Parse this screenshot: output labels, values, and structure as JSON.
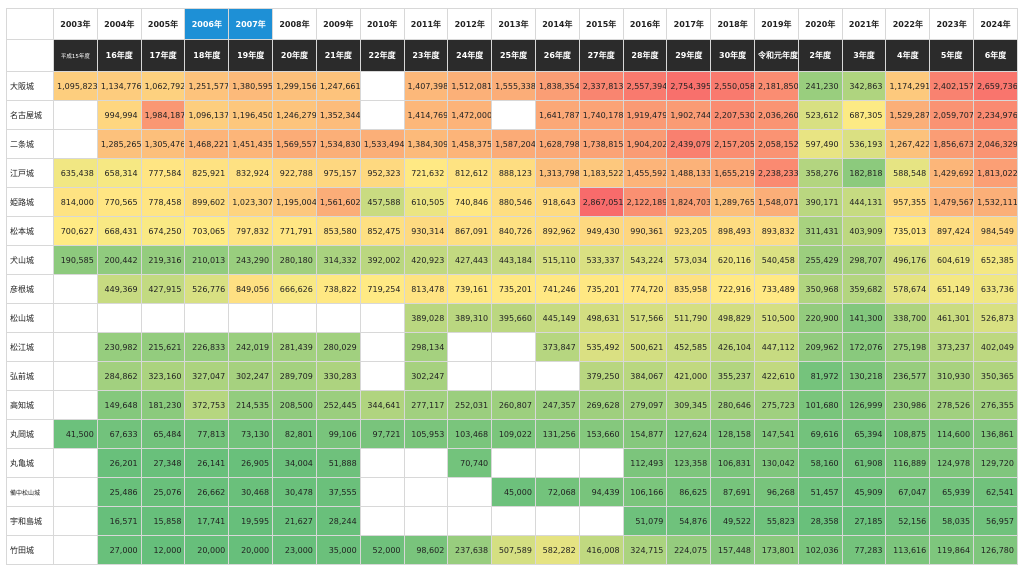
{
  "chart_data": {
    "type": "table",
    "years": [
      "2003年",
      "2004年",
      "2005年",
      "2006年",
      "2007年",
      "2008年",
      "2009年",
      "2010年",
      "2011年",
      "2012年",
      "2013年",
      "2014年",
      "2015年",
      "2016年",
      "2017年",
      "2018年",
      "2019年",
      "2020年",
      "2021年",
      "2022年",
      "2023年",
      "2024年"
    ],
    "eras": [
      "平成15年度",
      "16年度",
      "17年度",
      "18年度",
      "19年度",
      "20年度",
      "21年度",
      "22年度",
      "23年度",
      "24年度",
      "25年度",
      "26年度",
      "27年度",
      "28年度",
      "29年度",
      "30年度",
      "令和元年度",
      "2年度",
      "3年度",
      "4年度",
      "5年度",
      "6年度"
    ],
    "highlight_years": [
      "2006年",
      "2007年"
    ],
    "rows": [
      {
        "name": "大阪城",
        "values": [
          1095823,
          1134776,
          1062792,
          1251577,
          1380595,
          1299156,
          1247661,
          null,
          1407398,
          1512081,
          1555338,
          1838354,
          2337813,
          2557394,
          2754395,
          2550058,
          2181850,
          241230,
          342863,
          1174291,
          2402157,
          2659736
        ]
      },
      {
        "name": "名古屋城",
        "values": [
          null,
          994994,
          1984187,
          1096137,
          1196450,
          1246279,
          1352344,
          null,
          1414769,
          1472000,
          null,
          1641787,
          1740178,
          1919479,
          1902744,
          2207530,
          2036260,
          523612,
          687305,
          1529287,
          2059707,
          2234976
        ]
      },
      {
        "name": "二条城",
        "values": [
          null,
          1285265,
          1305476,
          1468221,
          1451435,
          1569557,
          1534830,
          1533494,
          1384309,
          1458375,
          1587204,
          1628798,
          1738815,
          1904202,
          2439079,
          2157205,
          2058152,
          597490,
          536193,
          1267422,
          1856673,
          2046329
        ]
      },
      {
        "name": "江戸城",
        "values": [
          635438,
          658314,
          777584,
          825921,
          832924,
          922788,
          975157,
          952323,
          721632,
          812612,
          888123,
          1313798,
          1183522,
          1455592,
          1488133,
          1655219,
          2238233,
          358276,
          182818,
          588548,
          1429692,
          1813022
        ]
      },
      {
        "name": "姫路城",
        "values": [
          814000,
          770565,
          778458,
          899602,
          1023307,
          1195004,
          1561602,
          457588,
          610505,
          740846,
          880546,
          918643,
          2867051,
          2122189,
          1824703,
          1289765,
          1548071,
          390171,
          444131,
          957355,
          1479567,
          1532111
        ]
      },
      {
        "name": "松本城",
        "values": [
          700627,
          668431,
          674250,
          703065,
          797832,
          771791,
          853580,
          852475,
          930314,
          867091,
          840726,
          892962,
          949430,
          990361,
          923205,
          898493,
          893832,
          311431,
          403909,
          735013,
          897424,
          984549
        ]
      },
      {
        "name": "犬山城",
        "values": [
          190585,
          200442,
          219316,
          210013,
          243290,
          280180,
          314332,
          392002,
          420923,
          427443,
          443184,
          515110,
          533337,
          543224,
          573034,
          620116,
          540458,
          255429,
          298707,
          496176,
          604619,
          652385
        ]
      },
      {
        "name": "彦根城",
        "values": [
          null,
          449369,
          427915,
          526776,
          849056,
          666626,
          738822,
          719254,
          813478,
          739161,
          735201,
          741246,
          735201,
          774720,
          835958,
          722916,
          733489,
          350968,
          359682,
          578674,
          651149,
          633736
        ]
      },
      {
        "name": "松山城",
        "values": [
          null,
          null,
          null,
          null,
          null,
          null,
          null,
          null,
          389028,
          389310,
          395660,
          445149,
          498631,
          517566,
          511790,
          498829,
          510500,
          220900,
          141300,
          338700,
          461301,
          526873
        ]
      },
      {
        "name": "松江城",
        "values": [
          null,
          230982,
          215621,
          226833,
          242019,
          281439,
          280029,
          null,
          298134,
          null,
          null,
          373847,
          535492,
          500621,
          452585,
          426104,
          447112,
          209962,
          172076,
          275198,
          373237,
          402049
        ]
      },
      {
        "name": "弘前城",
        "values": [
          null,
          284862,
          323160,
          327047,
          302247,
          289709,
          330283,
          null,
          302247,
          null,
          null,
          null,
          379250,
          384067,
          421000,
          355237,
          422610,
          81972,
          130218,
          236577,
          310930,
          350365
        ]
      },
      {
        "name": "高知城",
        "values": [
          null,
          149648,
          181230,
          372753,
          214535,
          208500,
          252445,
          344641,
          277117,
          252031,
          260807,
          247357,
          269628,
          279097,
          309345,
          280646,
          275723,
          101680,
          126999,
          230986,
          278526,
          276355
        ]
      },
      {
        "name": "丸岡城",
        "values": [
          41500,
          67633,
          65484,
          77813,
          73130,
          82801,
          99106,
          97721,
          105953,
          103468,
          109022,
          131256,
          153660,
          154877,
          127624,
          128158,
          147541,
          69616,
          65394,
          108875,
          114600,
          136861
        ]
      },
      {
        "name": "丸亀城",
        "values": [
          null,
          26201,
          27348,
          26141,
          26905,
          34004,
          51888,
          null,
          null,
          70740,
          null,
          null,
          null,
          112493,
          123358,
          106831,
          130042,
          58160,
          61908,
          116889,
          124978,
          129720
        ]
      },
      {
        "name": "備中松山城",
        "values": [
          null,
          25486,
          25076,
          26662,
          30468,
          30478,
          37555,
          null,
          null,
          null,
          45000,
          72068,
          94439,
          106166,
          86625,
          87691,
          96268,
          51457,
          45909,
          67047,
          65939,
          62541
        ]
      },
      {
        "name": "宇和島城",
        "values": [
          null,
          16571,
          15858,
          17741,
          19595,
          21627,
          28244,
          null,
          null,
          null,
          null,
          null,
          null,
          51079,
          54876,
          49522,
          55823,
          28358,
          27185,
          52156,
          58035,
          56957
        ]
      },
      {
        "name": "竹田城",
        "values": [
          null,
          27000,
          12000,
          20000,
          20000,
          23000,
          35000,
          52000,
          98602,
          237638,
          507589,
          582282,
          416008,
          324715,
          224075,
          157448,
          173801,
          102036,
          77283,
          113616,
          119864,
          126780
        ]
      }
    ]
  }
}
